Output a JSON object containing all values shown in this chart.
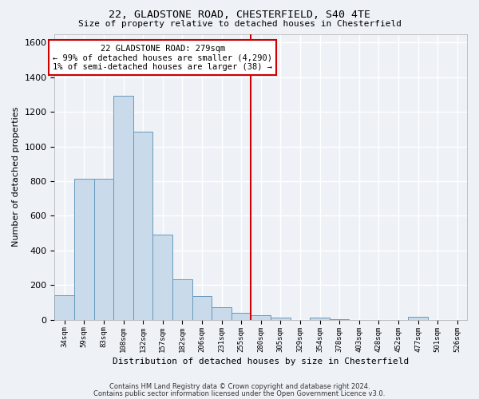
{
  "title1": "22, GLADSTONE ROAD, CHESTERFIELD, S40 4TE",
  "title2": "Size of property relative to detached houses in Chesterfield",
  "xlabel": "Distribution of detached houses by size in Chesterfield",
  "ylabel": "Number of detached properties",
  "categories": [
    "34sqm",
    "59sqm",
    "83sqm",
    "108sqm",
    "132sqm",
    "157sqm",
    "182sqm",
    "206sqm",
    "231sqm",
    "255sqm",
    "280sqm",
    "305sqm",
    "329sqm",
    "354sqm",
    "378sqm",
    "403sqm",
    "428sqm",
    "452sqm",
    "477sqm",
    "501sqm",
    "526sqm"
  ],
  "values": [
    140,
    815,
    815,
    1295,
    1085,
    490,
    235,
    135,
    70,
    40,
    25,
    10,
    0,
    10,
    5,
    0,
    0,
    0,
    15,
    0,
    0
  ],
  "bar_color": "#c9daea",
  "bar_edge_color": "#6699bb",
  "vline_x_index": 9.5,
  "annotation_line1": "22 GLADSTONE ROAD: 279sqm",
  "annotation_line2": "← 99% of detached houses are smaller (4,290)",
  "annotation_line3": "1% of semi-detached houses are larger (38) →",
  "ylim": [
    0,
    1650
  ],
  "yticks": [
    0,
    200,
    400,
    600,
    800,
    1000,
    1200,
    1400,
    1600
  ],
  "footer1": "Contains HM Land Registry data © Crown copyright and database right 2024.",
  "footer2": "Contains public sector information licensed under the Open Government Licence v3.0.",
  "bg_color": "#eef2f7",
  "plot_bg_color": "#eef2f7",
  "grid_color": "#ffffff",
  "annotation_box_color": "#cc0000",
  "vline_color": "#cc0000"
}
